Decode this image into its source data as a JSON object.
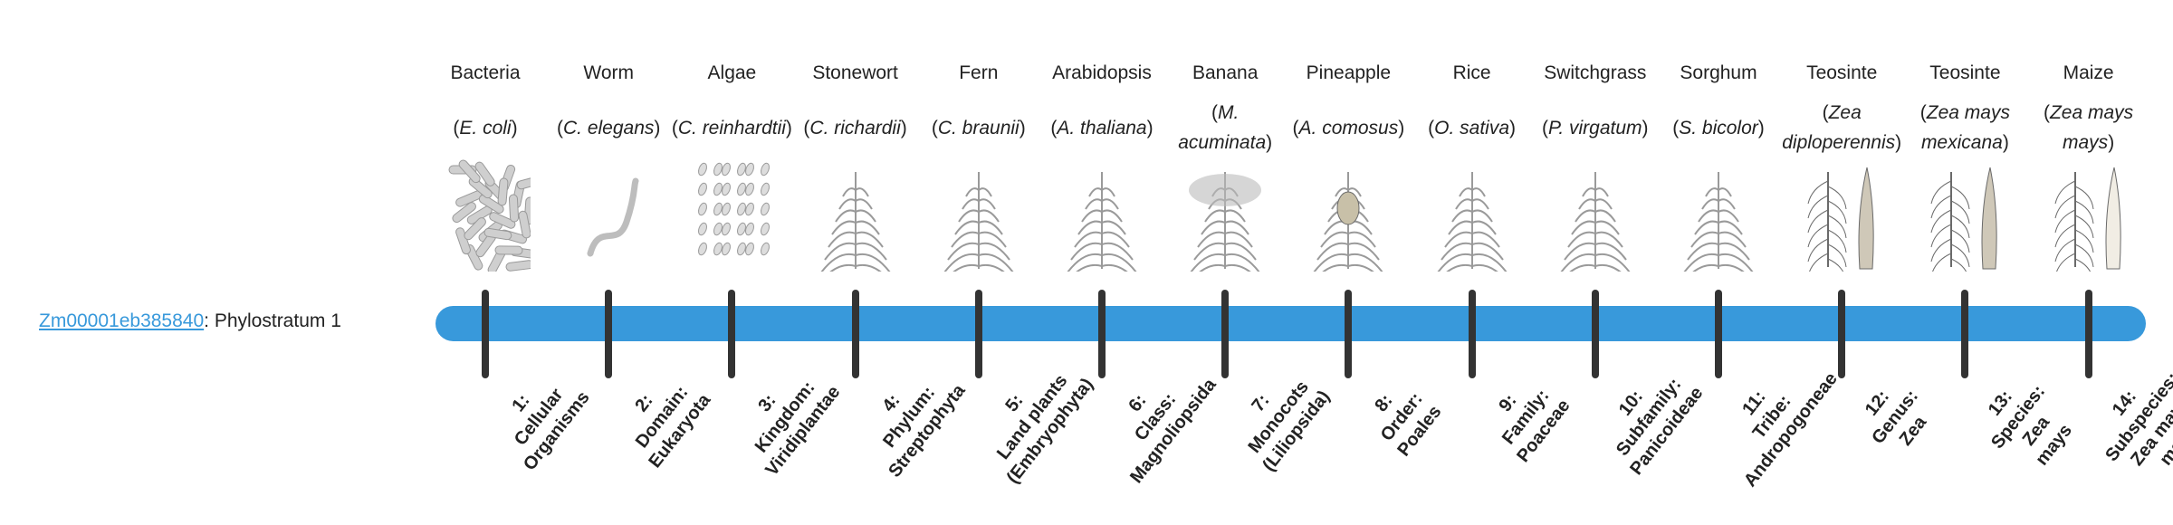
{
  "gene": {
    "id": "Zm00001eb385840",
    "suffix": ": Phylostratum 1"
  },
  "colors": {
    "bar": "#3899db",
    "tick": "#333333",
    "link": "#3899db"
  },
  "strata": [
    {
      "common": "Bacteria",
      "species": "E. coli",
      "label": [
        "1:",
        "Cellular",
        "Organisms"
      ],
      "icon": "bacteria-illustration"
    },
    {
      "common": "Worm",
      "species": "C. elegans",
      "label": [
        "2:",
        "Domain:",
        "Eukaryota"
      ],
      "icon": "worm-illustration"
    },
    {
      "common": "Algae",
      "species": "C. reinhardtii",
      "label": [
        "3:",
        "Kingdom:",
        "Viridiplantae"
      ],
      "icon": "algae-illustration"
    },
    {
      "common": "Stonewort",
      "species": "C. richardii",
      "label": [
        "4:",
        "Phylum:",
        "Streptophyta"
      ],
      "icon": "stonewort-illustration"
    },
    {
      "common": "Fern",
      "species": "C. braunii",
      "label": [
        "5:",
        "Land plants",
        "(Embryophyta)"
      ],
      "icon": "fern-illustration"
    },
    {
      "common": "Arabidopsis",
      "species": "A. thaliana",
      "label": [
        "6:",
        "Class:",
        "Magnoliopsida"
      ],
      "icon": "arabidopsis-illustration"
    },
    {
      "common": "Banana",
      "species": "M. acuminata",
      "label": [
        "7:",
        "Monocots",
        "(Liliopsida)"
      ],
      "icon": "banana-illustration"
    },
    {
      "common": "Pineapple",
      "species": "A. comosus",
      "label": [
        "8:",
        "Order:",
        "Poales"
      ],
      "icon": "pineapple-illustration"
    },
    {
      "common": "Rice",
      "species": "O. sativa",
      "label": [
        "9:",
        "Family:",
        "Poaceae"
      ],
      "icon": "rice-illustration"
    },
    {
      "common": "Switchgrass",
      "species": "P. virgatum",
      "label": [
        "10:",
        "Subfamily:",
        "Panicoideae"
      ],
      "icon": "switchgrass-illustration"
    },
    {
      "common": "Sorghum",
      "species": "S. bicolor",
      "label": [
        "11:",
        "Tribe:",
        "Andropogoneae"
      ],
      "icon": "sorghum-illustration"
    },
    {
      "common": "Teosinte",
      "species": "Zea diploperennis",
      "label": [
        "12:",
        "Genus:",
        "Zea"
      ],
      "icon": "teosinte-illustration"
    },
    {
      "common": "Teosinte",
      "species": "Zea mays mexicana",
      "label": [
        "13:",
        "Species:",
        "Zea",
        "mays"
      ],
      "icon": "teosinte-mexicana-illustration"
    },
    {
      "common": "Maize",
      "species": "Zea mays mays",
      "label": [
        "14:",
        "Subspecies:",
        "Zea mays",
        "mays"
      ],
      "icon": "maize-illustration"
    }
  ]
}
